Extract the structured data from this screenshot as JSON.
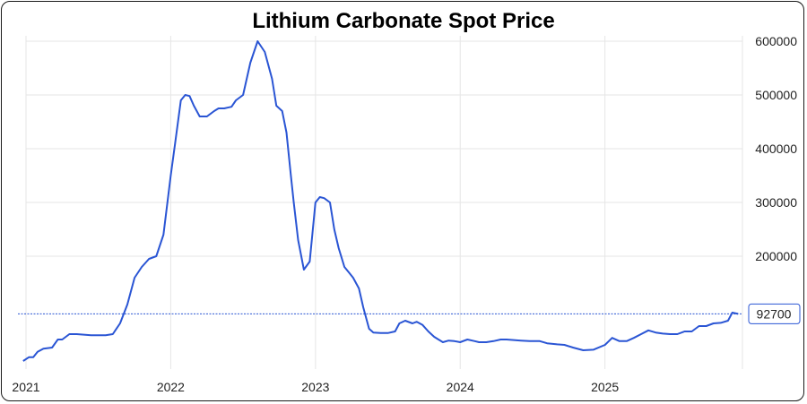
{
  "chart_data": {
    "type": "line",
    "title": "Lithium Carbonate Spot Price",
    "xlabel": "",
    "ylabel": "",
    "xlim": [
      2021.0,
      2025.95
    ],
    "ylim": [
      -10000,
      610000
    ],
    "x_ticks": [
      {
        "value": 2021,
        "label": "2021"
      },
      {
        "value": 2022,
        "label": "2022"
      },
      {
        "value": 2023,
        "label": "2023"
      },
      {
        "value": 2024,
        "label": "2024"
      },
      {
        "value": 2025,
        "label": "2025"
      }
    ],
    "y_ticks": [
      {
        "value": 600000,
        "label": "600000"
      },
      {
        "value": 500000,
        "label": "500000"
      },
      {
        "value": 400000,
        "label": "400000"
      },
      {
        "value": 300000,
        "label": "300000"
      },
      {
        "value": 200000,
        "label": "200000"
      }
    ],
    "last_value": {
      "value": 92700,
      "label": "92700"
    },
    "colors": {
      "line": "#2a55d4",
      "grid": "#e6e6e6",
      "reference": "#2a55d4",
      "label_border": "#2a55d4"
    },
    "series": [
      {
        "name": "Lithium Carbonate Spot Price",
        "x": [
          2020.98,
          2021.02,
          2021.05,
          2021.08,
          2021.12,
          2021.18,
          2021.22,
          2021.25,
          2021.3,
          2021.35,
          2021.45,
          2021.55,
          2021.6,
          2021.65,
          2021.7,
          2021.75,
          2021.8,
          2021.85,
          2021.9,
          2021.95,
          2022.0,
          2022.03,
          2022.07,
          2022.1,
          2022.13,
          2022.16,
          2022.2,
          2022.25,
          2022.3,
          2022.33,
          2022.37,
          2022.42,
          2022.45,
          2022.5,
          2022.55,
          2022.6,
          2022.65,
          2022.7,
          2022.73,
          2022.77,
          2022.8,
          2022.83,
          2022.85,
          2022.88,
          2022.92,
          2022.96,
          2023.0,
          2023.03,
          2023.06,
          2023.1,
          2023.13,
          2023.16,
          2023.2,
          2023.23,
          2023.26,
          2023.3,
          2023.33,
          2023.37,
          2023.4,
          2023.45,
          2023.5,
          2023.55,
          2023.58,
          2023.62,
          2023.67,
          2023.7,
          2023.74,
          2023.78,
          2023.82,
          2023.85,
          2023.88,
          2023.92,
          2023.96,
          2024.0,
          2024.05,
          2024.1,
          2024.13,
          2024.18,
          2024.23,
          2024.28,
          2024.32,
          2024.37,
          2024.42,
          2024.48,
          2024.55,
          2024.6,
          2024.67,
          2024.72,
          2024.78,
          2024.85,
          2024.92,
          2025.0,
          2025.05,
          2025.1,
          2025.15,
          2025.2,
          2025.25,
          2025.3,
          2025.35,
          2025.4,
          2025.45,
          2025.5,
          2025.55,
          2025.6,
          2025.65,
          2025.7,
          2025.75,
          2025.8,
          2025.85,
          2025.88,
          2025.92
        ],
        "values": [
          5000,
          12000,
          12000,
          22000,
          28000,
          30000,
          45000,
          45000,
          55000,
          55000,
          53000,
          53000,
          55000,
          75000,
          110000,
          160000,
          180000,
          195000,
          200000,
          240000,
          350000,
          410000,
          490000,
          500000,
          498000,
          480000,
          460000,
          460000,
          470000,
          475000,
          475000,
          478000,
          490000,
          500000,
          560000,
          600000,
          580000,
          530000,
          480000,
          470000,
          430000,
          350000,
          300000,
          230000,
          175000,
          190000,
          300000,
          310000,
          308000,
          300000,
          250000,
          215000,
          180000,
          170000,
          160000,
          140000,
          105000,
          65000,
          58000,
          57000,
          57000,
          60000,
          75000,
          80000,
          75000,
          78000,
          72000,
          60000,
          50000,
          45000,
          40000,
          43000,
          42000,
          40000,
          45000,
          42000,
          40000,
          40000,
          42000,
          45000,
          45000,
          44000,
          43000,
          42000,
          42000,
          38000,
          36000,
          35000,
          30000,
          25000,
          26000,
          35000,
          48000,
          42000,
          42000,
          48000,
          55000,
          62000,
          58000,
          56000,
          55000,
          55000,
          60000,
          60000,
          70000,
          70000,
          75000,
          76000,
          80000,
          95000,
          92700
        ]
      }
    ]
  }
}
